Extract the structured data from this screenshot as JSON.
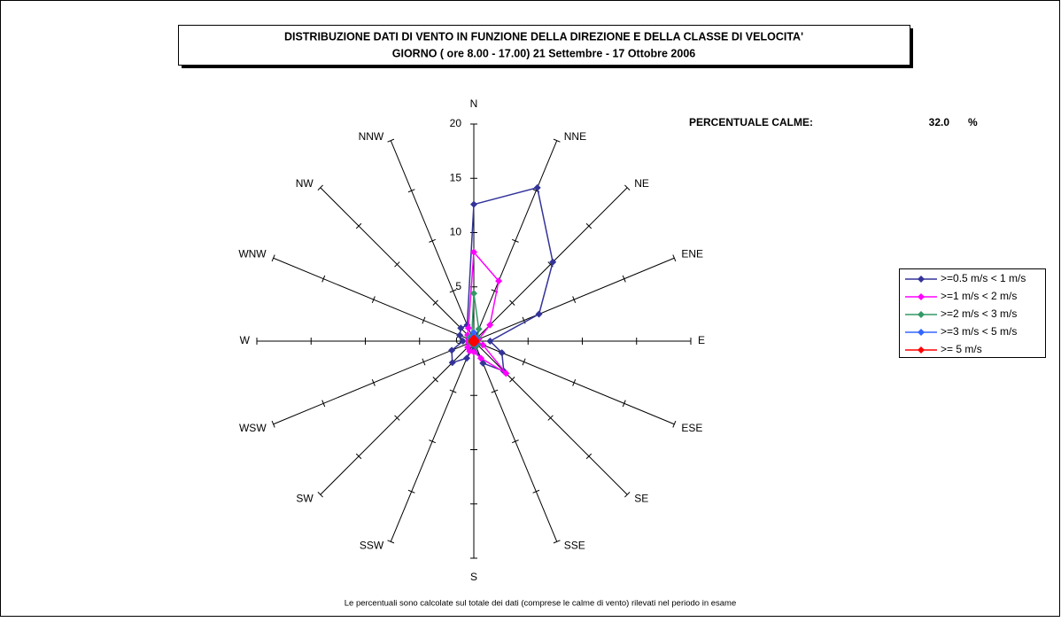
{
  "chart_data": {
    "type": "radar",
    "title": "DISTRIBUZIONE DATI DI VENTO IN FUNZIONE DELLA DIREZIONE E DELLA CLASSE DI VELOCITA'",
    "subtitle": "GIORNO ( ore 8.00 - 17.00)  21 Settembre - 17 Ottobre 2006",
    "calm_label": "PERCENTUALE CALME:",
    "calm_value": "32.0",
    "calm_unit": "%",
    "note": "Le percentuali sono calcolate sul totale dei dati (comprese le calme di vento) rilevati nel periodo in esame",
    "categories": [
      "N",
      "NNE",
      "NE",
      "ENE",
      "E",
      "ESE",
      "SE",
      "SSE",
      "S",
      "SSW",
      "SW",
      "WSW",
      "W",
      "WNW",
      "NW",
      "NNW"
    ],
    "rlim": [
      0,
      20
    ],
    "rticks": [
      0,
      5,
      10,
      15,
      20
    ],
    "series": [
      {
        "name": ">=0.5 m/s < 1 m/s",
        "color": "#333399",
        "values": [
          12.6,
          15.3,
          10.3,
          6.5,
          1.5,
          2.8,
          3.9,
          2.2,
          0.5,
          1.7,
          2.8,
          2.2,
          1.0,
          1.4,
          1.7,
          1.6
        ]
      },
      {
        "name": ">=1 m/s < 2 m/s",
        "color": "#ff00ff",
        "values": [
          8.2,
          6.0,
          2.1,
          0.5,
          0.3,
          0.9,
          4.2,
          1.7,
          1.0,
          1.0,
          0.8,
          0.5,
          0.5,
          0.5,
          0.8,
          1.3
        ]
      },
      {
        "name": ">=2 m/s < 3 m/s",
        "color": "#339966",
        "values": [
          4.4,
          1.2,
          0.5,
          0.3,
          0.3,
          0.3,
          0.5,
          0.5,
          0.3,
          0.3,
          0.3,
          0.3,
          0.3,
          0.3,
          0.5,
          0.5
        ]
      },
      {
        "name": ">=3 m/s < 5 m/s",
        "color": "#3366ff",
        "values": [
          0.8,
          0.4,
          0.3,
          0.3,
          0.2,
          0.2,
          0.3,
          0.3,
          0.2,
          0.2,
          0.2,
          0.2,
          0.2,
          0.2,
          0.3,
          0.4
        ]
      },
      {
        "name": ">= 5 m/s",
        "color": "#ff0000",
        "values": [
          0.3,
          0.2,
          0.2,
          0.2,
          0.2,
          0.2,
          0.2,
          0.2,
          0.2,
          0.2,
          0.2,
          0.2,
          0.2,
          0.2,
          0.2,
          0.2
        ]
      }
    ]
  }
}
